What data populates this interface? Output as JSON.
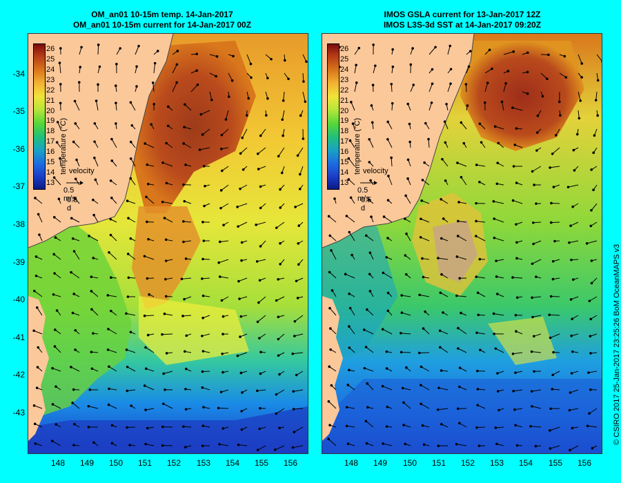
{
  "panels": [
    {
      "title_line1": "OM_an01 10-15m temp. 14-Jan-2017",
      "title_line2": "OM_an01 10-15m current for 14-Jan-2017 00Z"
    },
    {
      "title_line1": "IMOS GSLA current for 13-Jan-2017 12Z",
      "title_line2": "IMOS L3S-3d SST at 14-Jan-2017 09:20Z"
    }
  ],
  "colorbar": {
    "ticks": [
      "26",
      "25",
      "24",
      "23",
      "22",
      "21",
      "20",
      "19",
      "18",
      "17",
      "16",
      "15",
      "14",
      "13"
    ],
    "label": "temperature (°C)"
  },
  "velocity_key": {
    "label": "velocity",
    "speed": "0.5 m/s",
    "time": "0.5 d"
  },
  "axes": {
    "lat_labels": [
      "-34",
      "-35",
      "-36",
      "-37",
      "-38",
      "-39",
      "-40",
      "-41",
      "-42",
      "-43"
    ],
    "lon_labels": [
      "148",
      "149",
      "150",
      "151",
      "152",
      "153",
      "154",
      "155",
      "156"
    ]
  },
  "credit": "© CSIRO 2017   25-Jan-2017 23:25:26 BoM OceanMAPS v3",
  "colors": {
    "background": "#00ffff",
    "land": "#fbc89a",
    "warm_core": "#a8401a",
    "cold_water": "#1a5ad6"
  }
}
